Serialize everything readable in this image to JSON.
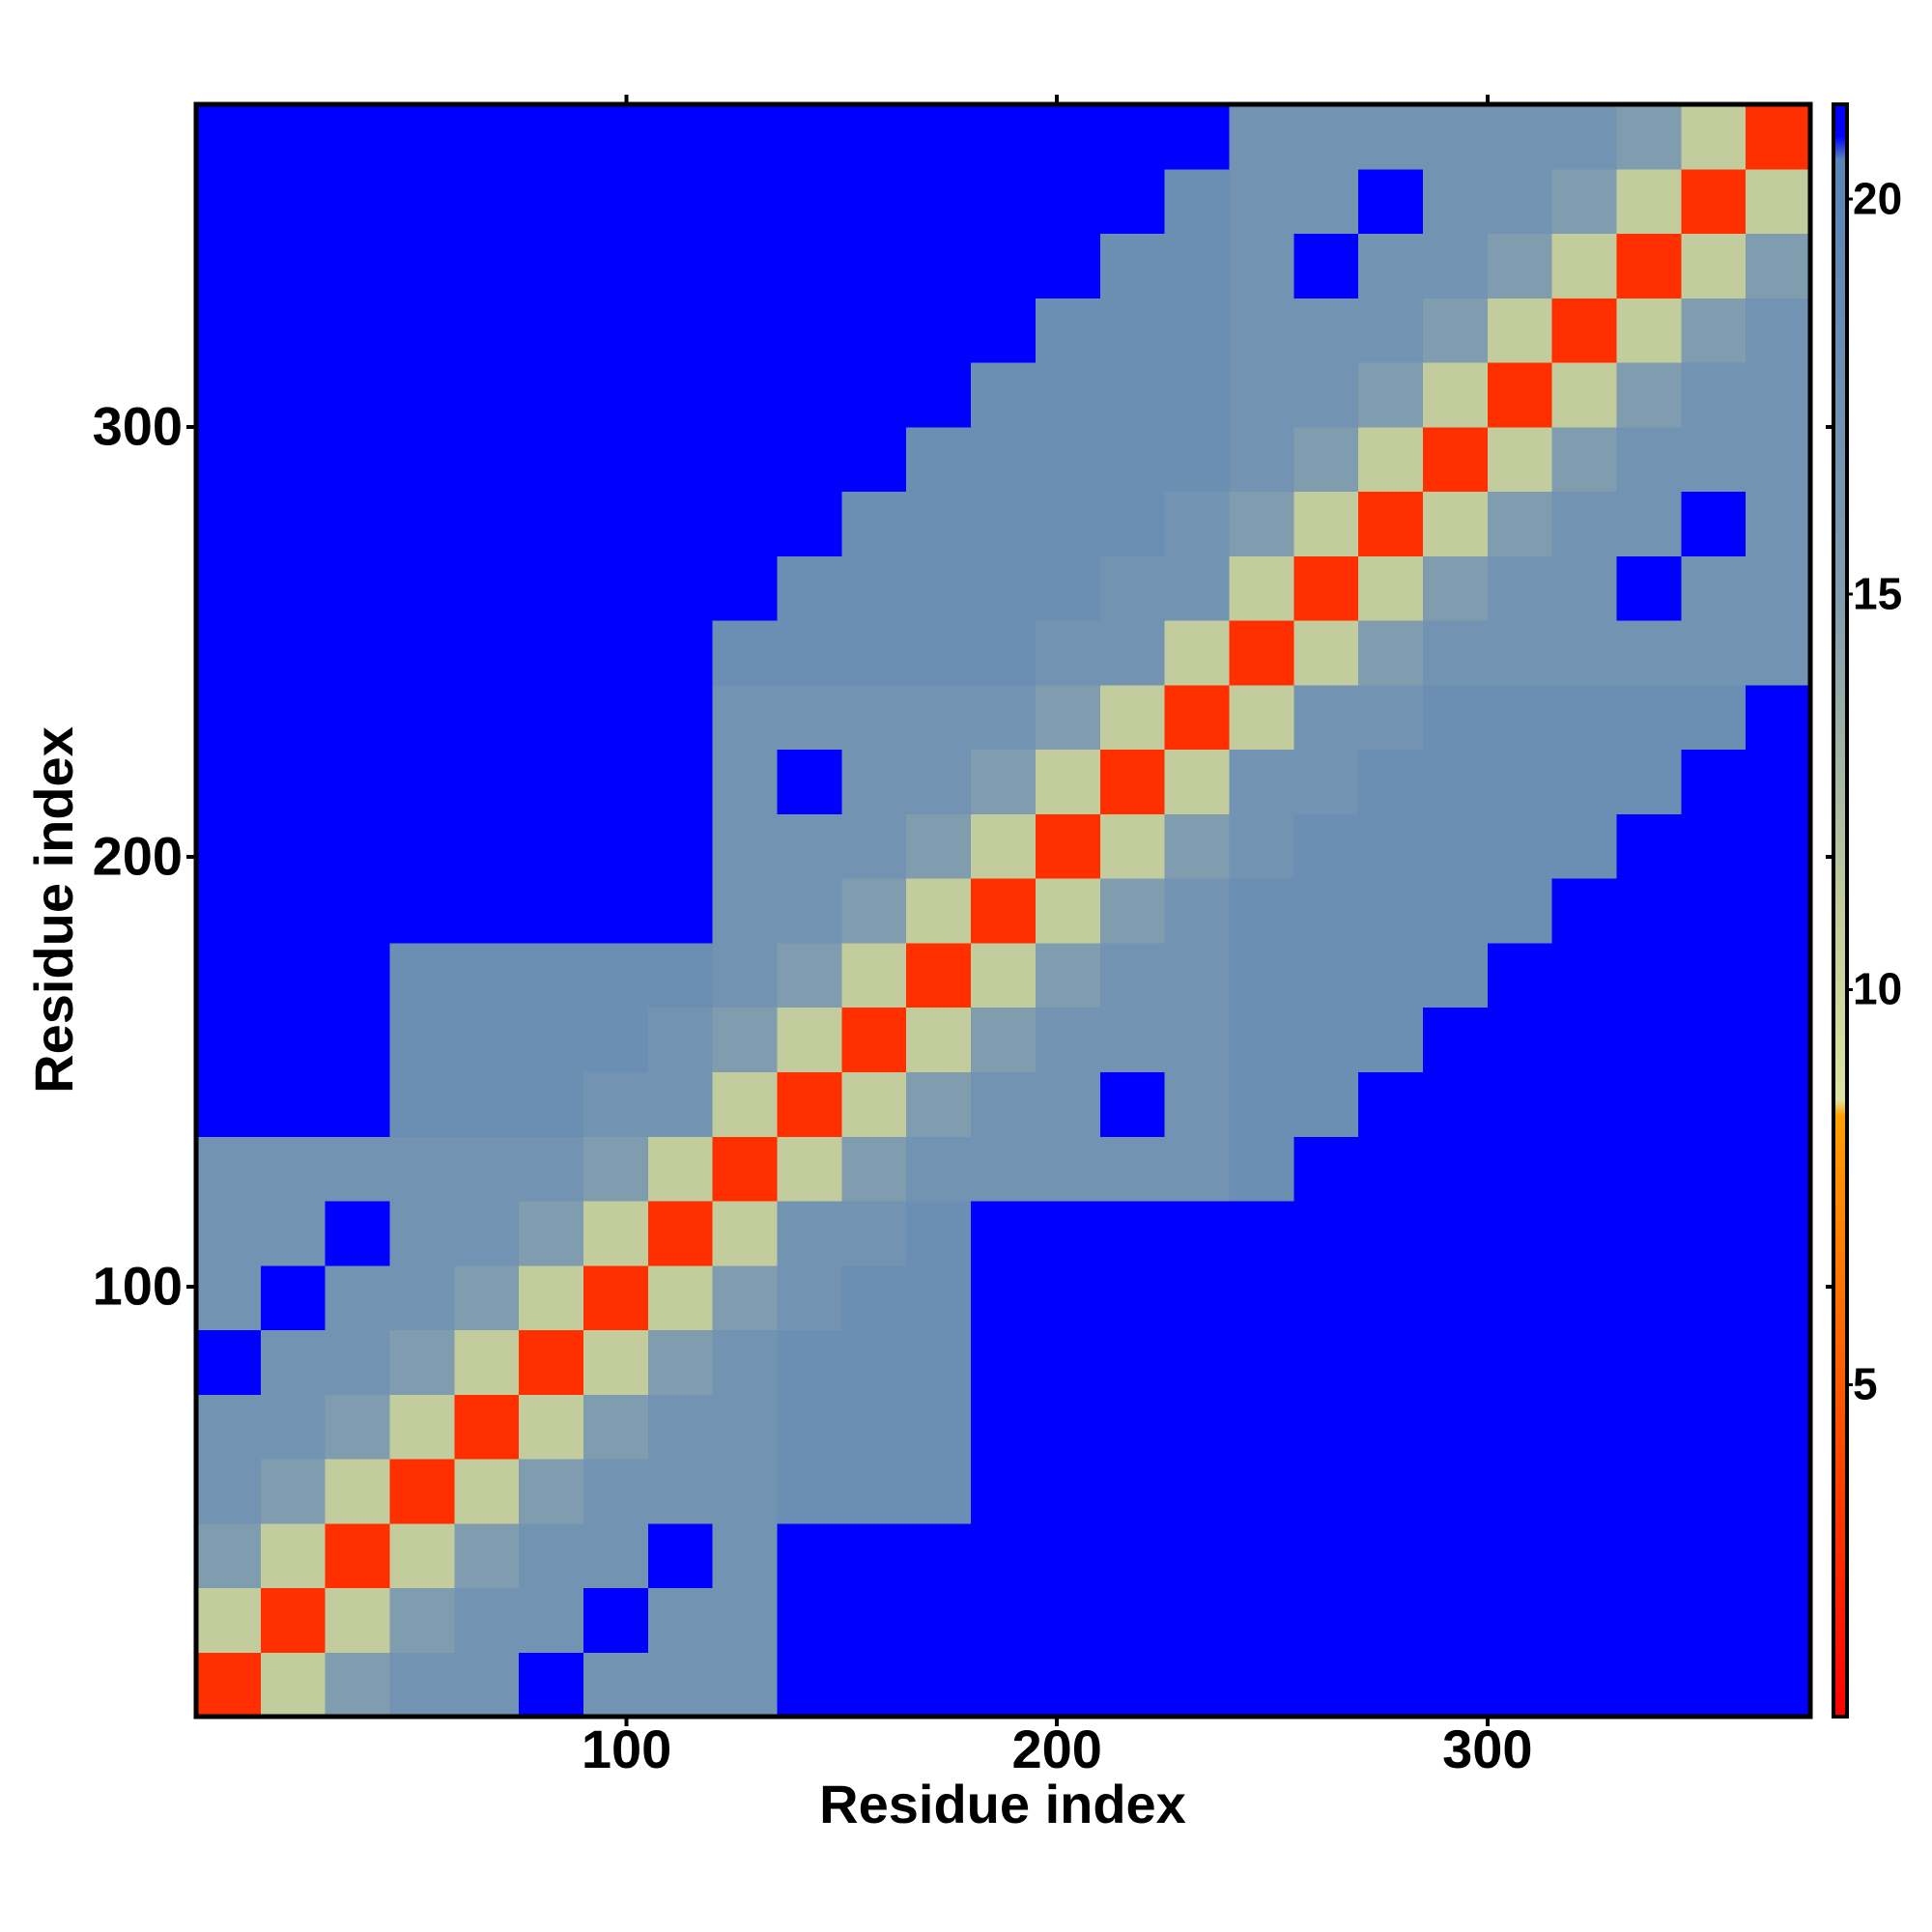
{
  "chart_data": {
    "type": "heatmap",
    "xlabel": "Residue index",
    "ylabel": "Residue index",
    "xlim": [
      0,
      375
    ],
    "ylim": [
      0,
      375
    ],
    "xticks": [
      100,
      200,
      300
    ],
    "yticks": [
      100,
      200,
      300
    ],
    "xbins": [
      0,
      15,
      30,
      45,
      60,
      75,
      90,
      105,
      120,
      135,
      150,
      165,
      180,
      195,
      210,
      225,
      240,
      255,
      270,
      285,
      300,
      315,
      330,
      345,
      360,
      375
    ],
    "ybins": [
      0,
      15,
      30,
      45,
      60,
      75,
      90,
      105,
      120,
      135,
      150,
      165,
      180,
      195,
      210,
      225,
      240,
      255,
      270,
      285,
      300,
      315,
      330,
      345,
      360,
      375
    ],
    "z": [
      [
        3,
        11,
        15,
        17,
        17,
        21,
        17,
        17,
        17,
        21,
        21,
        21,
        21,
        21,
        21,
        21,
        21,
        21,
        21,
        21,
        21,
        21,
        21,
        21,
        21
      ],
      [
        11,
        3,
        11,
        15,
        17,
        17,
        21,
        17,
        17,
        21,
        21,
        21,
        21,
        21,
        21,
        21,
        21,
        21,
        21,
        21,
        21,
        21,
        21,
        21,
        21
      ],
      [
        15,
        11,
        3,
        11,
        15,
        17,
        17,
        21,
        17,
        21,
        21,
        21,
        21,
        21,
        21,
        21,
        21,
        21,
        21,
        21,
        21,
        21,
        21,
        21,
        21
      ],
      [
        17,
        15,
        11,
        3,
        11,
        15,
        17,
        17,
        17,
        18,
        18,
        18,
        21,
        21,
        21,
        21,
        21,
        21,
        21,
        21,
        21,
        21,
        21,
        21,
        21
      ],
      [
        17,
        17,
        15,
        11,
        3,
        11,
        15,
        17,
        17,
        18,
        18,
        18,
        21,
        21,
        21,
        21,
        21,
        21,
        21,
        21,
        21,
        21,
        21,
        21,
        21
      ],
      [
        21,
        17,
        17,
        15,
        11,
        3,
        11,
        15,
        17,
        18,
        18,
        18,
        21,
        21,
        21,
        21,
        21,
        21,
        21,
        21,
        21,
        21,
        21,
        21,
        21
      ],
      [
        17,
        21,
        17,
        17,
        15,
        11,
        3,
        11,
        15,
        17,
        18,
        18,
        21,
        21,
        21,
        21,
        21,
        21,
        21,
        21,
        21,
        21,
        21,
        21,
        21
      ],
      [
        17,
        17,
        21,
        17,
        17,
        15,
        11,
        3,
        11,
        17,
        17,
        18,
        21,
        21,
        21,
        21,
        21,
        21,
        21,
        21,
        21,
        21,
        21,
        21,
        21
      ],
      [
        17,
        17,
        17,
        17,
        17,
        17,
        15,
        11,
        3,
        11,
        15,
        17,
        17,
        17,
        17,
        17,
        18,
        21,
        21,
        21,
        21,
        21,
        21,
        21,
        21
      ],
      [
        21,
        21,
        21,
        18,
        18,
        18,
        17,
        17,
        11,
        3,
        11,
        15,
        17,
        17,
        21,
        17,
        18,
        18,
        21,
        21,
        21,
        21,
        21,
        21,
        21
      ],
      [
        21,
        21,
        21,
        18,
        18,
        18,
        18,
        17,
        15,
        11,
        3,
        11,
        15,
        17,
        17,
        17,
        18,
        18,
        18,
        21,
        21,
        21,
        21,
        21,
        21
      ],
      [
        21,
        21,
        21,
        18,
        18,
        18,
        18,
        18,
        17,
        15,
        11,
        3,
        11,
        15,
        17,
        17,
        18,
        18,
        18,
        18,
        21,
        21,
        21,
        21,
        21
      ],
      [
        21,
        21,
        21,
        21,
        21,
        21,
        21,
        21,
        17,
        17,
        15,
        11,
        3,
        11,
        15,
        17,
        18,
        18,
        18,
        18,
        18,
        21,
        21,
        21,
        21
      ],
      [
        21,
        21,
        21,
        21,
        21,
        21,
        21,
        21,
        17,
        17,
        17,
        15,
        11,
        3,
        11,
        15,
        17,
        18,
        18,
        18,
        18,
        18,
        21,
        21,
        21
      ],
      [
        21,
        21,
        21,
        21,
        21,
        21,
        21,
        21,
        17,
        21,
        17,
        17,
        15,
        11,
        3,
        11,
        17,
        17,
        18,
        18,
        18,
        18,
        18,
        21,
        21
      ],
      [
        21,
        21,
        21,
        21,
        21,
        21,
        21,
        21,
        17,
        17,
        17,
        17,
        17,
        15,
        11,
        3,
        11,
        17,
        17,
        18,
        18,
        18,
        18,
        18,
        21
      ],
      [
        21,
        21,
        21,
        21,
        21,
        21,
        21,
        21,
        18,
        18,
        18,
        18,
        18,
        17,
        17,
        11,
        3,
        11,
        15,
        17,
        17,
        17,
        17,
        17,
        17
      ],
      [
        21,
        21,
        21,
        21,
        21,
        21,
        21,
        21,
        21,
        18,
        18,
        18,
        18,
        18,
        17,
        17,
        11,
        3,
        11,
        15,
        17,
        17,
        21,
        17,
        17
      ],
      [
        21,
        21,
        21,
        21,
        21,
        21,
        21,
        21,
        21,
        21,
        18,
        18,
        18,
        18,
        18,
        17,
        15,
        11,
        3,
        11,
        15,
        17,
        17,
        21,
        17
      ],
      [
        21,
        21,
        21,
        21,
        21,
        21,
        21,
        21,
        21,
        21,
        21,
        18,
        18,
        18,
        18,
        18,
        17,
        15,
        11,
        3,
        11,
        15,
        17,
        17,
        17
      ],
      [
        21,
        21,
        21,
        21,
        21,
        21,
        21,
        21,
        21,
        21,
        21,
        21,
        18,
        18,
        18,
        18,
        17,
        17,
        15,
        11,
        3,
        11,
        15,
        17,
        17
      ],
      [
        21,
        21,
        21,
        21,
        21,
        21,
        21,
        21,
        21,
        21,
        21,
        21,
        21,
        18,
        18,
        18,
        17,
        17,
        17,
        15,
        11,
        3,
        11,
        15,
        17
      ],
      [
        21,
        21,
        21,
        21,
        21,
        21,
        21,
        21,
        21,
        21,
        21,
        21,
        21,
        21,
        18,
        18,
        17,
        21,
        17,
        17,
        15,
        11,
        3,
        11,
        15
      ],
      [
        21,
        21,
        21,
        21,
        21,
        21,
        21,
        21,
        21,
        21,
        21,
        21,
        21,
        21,
        21,
        18,
        17,
        17,
        21,
        17,
        17,
        15,
        11,
        3,
        11
      ],
      [
        21,
        21,
        21,
        21,
        21,
        21,
        21,
        21,
        21,
        21,
        21,
        21,
        21,
        21,
        21,
        21,
        17,
        17,
        17,
        17,
        17,
        17,
        15,
        11,
        3
      ]
    ],
    "colorscale": [
      [
        0.8,
        "#ff0000"
      ],
      [
        5,
        "#ff5a00"
      ],
      [
        8.4,
        "#ff9f00"
      ],
      [
        8.6,
        "#dde3a0"
      ],
      [
        11,
        "#c2cc9c"
      ],
      [
        15,
        "#809caf"
      ],
      [
        20.5,
        "#5a84b6"
      ],
      [
        20.8,
        "#0000ff"
      ]
    ],
    "colorbar": {
      "lim": [
        0.8,
        21.2
      ],
      "ticks": [
        5,
        10,
        15,
        20
      ]
    }
  }
}
